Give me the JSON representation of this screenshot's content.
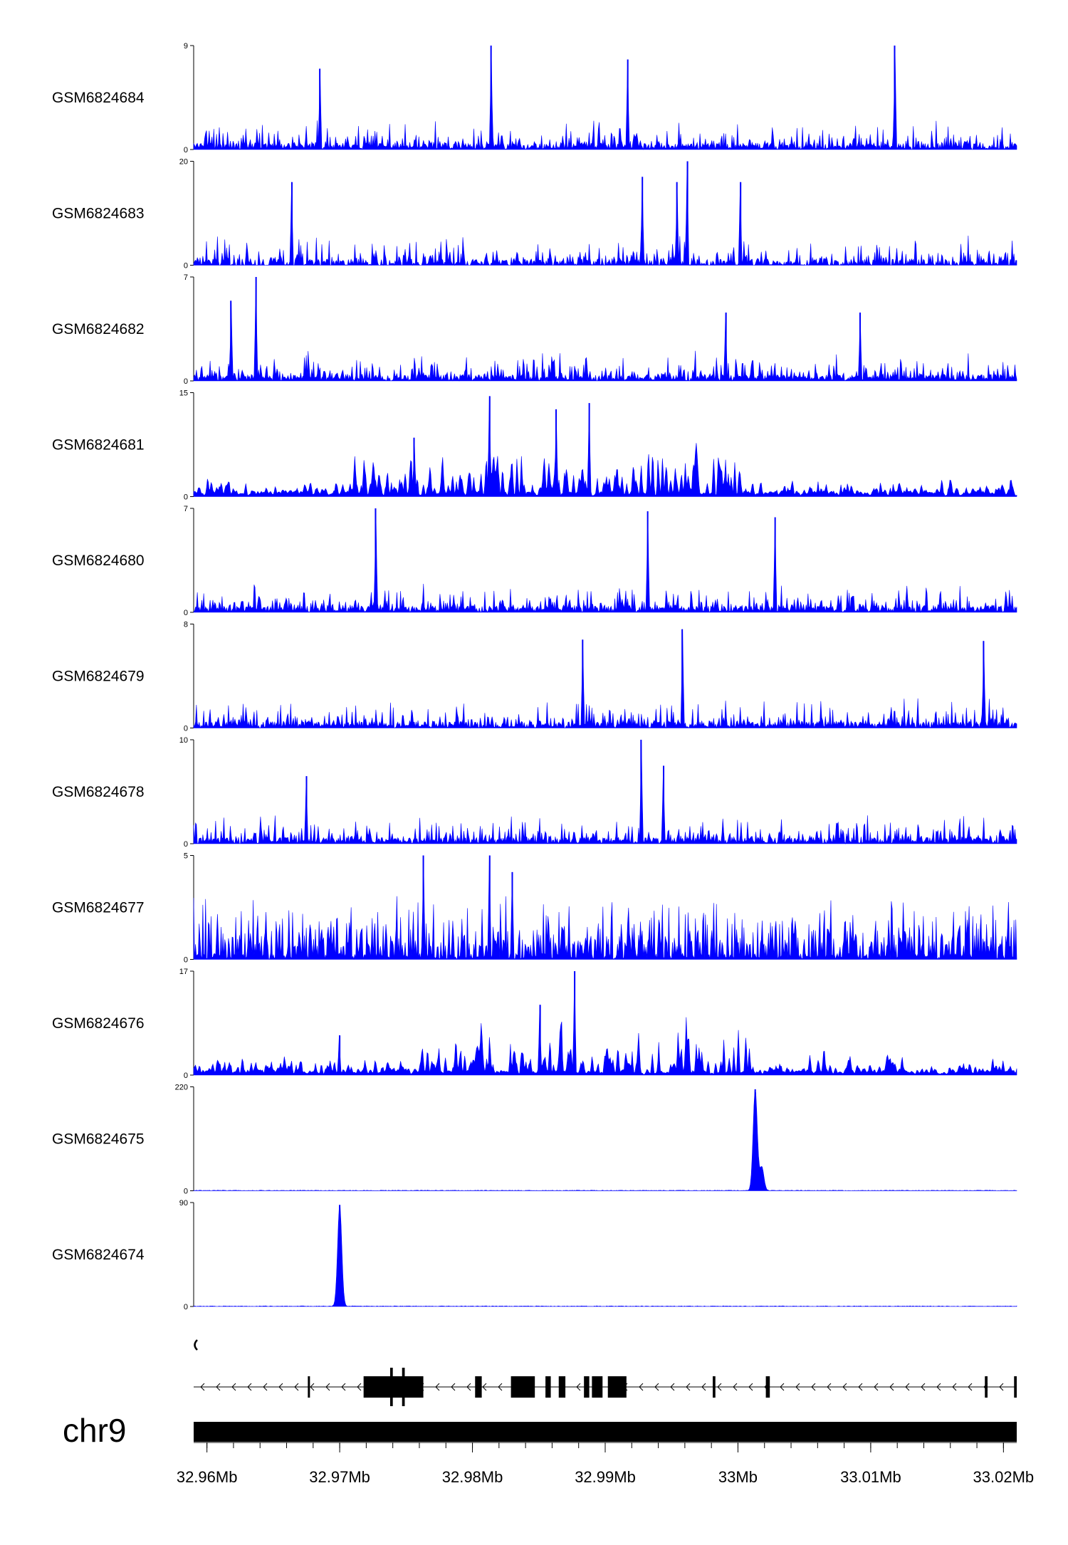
{
  "chart_data": {
    "type": "area",
    "chromosome": "chr9",
    "xlim": [
      32.959,
      33.021
    ],
    "x_unit": "Mb",
    "x_ticks": [
      32.96,
      32.97,
      32.98,
      32.99,
      33.0,
      33.01,
      33.02
    ],
    "x_tick_labels": [
      "32.96Mb",
      "32.97Mb",
      "32.98Mb",
      "32.99Mb",
      "33Mb",
      "33.01Mb",
      "33.02Mb"
    ],
    "color": "#0000ff",
    "series": [
      {
        "name": "GSM6824684",
        "ylim": [
          0,
          9
        ],
        "ymax_label": "9",
        "ymin_label": "0",
        "peaks": [
          [
            32.9814,
            9
          ],
          [
            33.0118,
            9
          ],
          [
            32.9917,
            7.8
          ],
          [
            32.9685,
            7
          ]
        ],
        "profile": "sparse"
      },
      {
        "name": "GSM6824683",
        "ylim": [
          0,
          20
        ],
        "ymax_label": "20",
        "ymin_label": "0",
        "peaks": [
          [
            32.9962,
            20
          ],
          [
            32.9928,
            17
          ],
          [
            32.9954,
            16
          ],
          [
            33.0002,
            16
          ],
          [
            32.9664,
            16
          ]
        ],
        "profile": "gapped"
      },
      {
        "name": "GSM6824682",
        "ylim": [
          0,
          7
        ],
        "ymax_label": "7",
        "ymin_label": "0",
        "peaks": [
          [
            32.9637,
            7
          ],
          [
            32.9618,
            5.4
          ],
          [
            32.9991,
            4.6
          ],
          [
            33.0092,
            4.6
          ]
        ],
        "profile": "sparse"
      },
      {
        "name": "GSM6824681",
        "ylim": [
          0,
          15
        ],
        "ymax_label": "15",
        "ymin_label": "0",
        "peaks": [
          [
            32.9813,
            14.5
          ],
          [
            32.9888,
            13.5
          ],
          [
            32.9863,
            12.6
          ],
          [
            32.9756,
            8.5
          ]
        ],
        "profile": "enriched-region",
        "region": [
          32.9708,
          33.0003
        ]
      },
      {
        "name": "GSM6824680",
        "ylim": [
          0,
          7
        ],
        "ymax_label": "7",
        "ymin_label": "0",
        "peaks": [
          [
            32.9727,
            7
          ],
          [
            32.9932,
            6.8
          ],
          [
            33.0028,
            6.4
          ]
        ],
        "profile": "sparse"
      },
      {
        "name": "GSM6824679",
        "ylim": [
          0,
          8
        ],
        "ymax_label": "8",
        "ymin_label": "0",
        "peaks": [
          [
            32.9958,
            7.6
          ],
          [
            32.9883,
            6.8
          ],
          [
            33.0185,
            6.7
          ]
        ],
        "profile": "sparse"
      },
      {
        "name": "GSM6824678",
        "ylim": [
          0,
          10
        ],
        "ymax_label": "10",
        "ymin_label": "0",
        "peaks": [
          [
            32.9927,
            10
          ],
          [
            32.9944,
            7.5
          ],
          [
            32.9675,
            6.5
          ]
        ],
        "profile": "sparse"
      },
      {
        "name": "GSM6824677",
        "ylim": [
          0,
          5
        ],
        "ymax_label": "5",
        "ymin_label": "0",
        "peaks": [
          [
            32.9763,
            5
          ],
          [
            32.9813,
            5
          ],
          [
            32.983,
            4.2
          ]
        ],
        "profile": "dense"
      },
      {
        "name": "GSM6824676",
        "ylim": [
          0,
          17
        ],
        "ymax_label": "17",
        "ymin_label": "0",
        "peaks": [
          [
            32.9877,
            17
          ],
          [
            32.9851,
            11.5
          ],
          [
            32.97,
            6.5
          ]
        ],
        "profile": "enriched-region",
        "region": [
          32.976,
          33.001
        ]
      },
      {
        "name": "GSM6824675",
        "ylim": [
          0,
          220
        ],
        "ymax_label": "220",
        "ymin_label": "0",
        "peaks": [
          [
            33.0013,
            215
          ],
          [
            33.0018,
            50
          ]
        ],
        "profile": "single-peak"
      },
      {
        "name": "GSM6824674",
        "ylim": [
          0,
          90
        ],
        "ymax_label": "90",
        "ymin_label": "0",
        "peaks": [
          [
            32.97,
            88
          ]
        ],
        "profile": "single-peak"
      }
    ],
    "gene_model": {
      "strand": "-",
      "start": 32.959,
      "end": 33.021,
      "exons": [
        [
          32.9676,
          32.9677
        ],
        [
          32.9718,
          32.9763
        ],
        [
          32.9738,
          32.974
        ],
        [
          32.9747,
          32.9749
        ],
        [
          32.9802,
          32.9807
        ],
        [
          32.9829,
          32.9847
        ],
        [
          32.9855,
          32.9859
        ],
        [
          32.9865,
          32.987
        ],
        [
          32.9884,
          32.9888
        ],
        [
          32.989,
          32.9898
        ],
        [
          32.9902,
          32.9916
        ],
        [
          32.9908,
          32.991
        ],
        [
          32.9981,
          32.9983
        ],
        [
          33.0021,
          33.0024
        ],
        [
          33.0186,
          33.0188
        ],
        [
          33.0208,
          33.021
        ]
      ]
    }
  }
}
